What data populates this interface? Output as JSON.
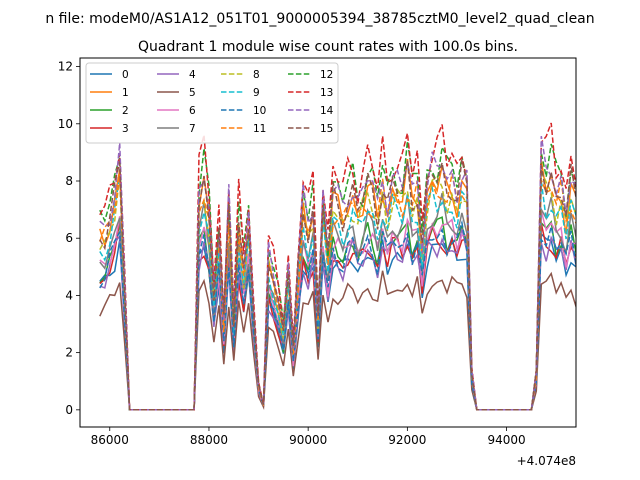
{
  "chart_data": {
    "type": "line",
    "suptitle": "n file: modeM0/AS1A12_051T01_9000005394_38785cztM0_level2_quad_clean",
    "title": "Quadrant 1 module wise count rates with 100.0s bins.",
    "xlabel": "",
    "ylabel": "",
    "x_offset_label": "+4.074e8",
    "xlim": [
      85400,
      95400
    ],
    "ylim": [
      -0.6,
      12.3
    ],
    "x_ticks": [
      86000,
      88000,
      90000,
      92000,
      94000
    ],
    "x_tick_labels": [
      "86000",
      "88000",
      "90000",
      "92000",
      "94000"
    ],
    "y_ticks": [
      0,
      2,
      4,
      6,
      8,
      10,
      12
    ],
    "y_tick_labels": [
      "0",
      "2",
      "4",
      "6",
      "8",
      "10",
      "12"
    ],
    "grid": false,
    "legend_position": "top-left",
    "legend_columns": 4,
    "x_start": 85800,
    "x_step": 100,
    "profile": [
      0.72,
      0.73,
      0.8,
      0.88,
      1.0,
      0.5,
      0,
      0,
      0,
      0,
      0,
      0,
      0,
      0,
      0,
      0,
      0,
      0,
      0,
      0,
      0.86,
      0.95,
      0.8,
      0.48,
      0.74,
      0.36,
      0.83,
      0.36,
      0.78,
      0.58,
      0.78,
      0.4,
      0.1,
      0.02,
      0.62,
      0.55,
      0.45,
      0.33,
      0.58,
      0.25,
      0.57,
      0.83,
      0.74,
      0.84,
      0.38,
      0.85,
      0.64,
      0.87,
      0.84,
      0.8,
      0.87,
      0.9,
      0.82,
      0.86,
      0.92,
      0.88,
      0.8,
      0.95,
      0.84,
      0.92,
      0.9,
      0.88,
      0.98,
      0.86,
      0.92,
      0.68,
      0.9,
      0.96,
      0.94,
      0.98,
      0.9,
      0.94,
      0.88,
      0.96,
      0.9,
      0.15,
      0,
      0,
      0,
      0,
      0,
      0,
      0,
      0,
      0,
      0,
      0,
      0,
      0.15,
      1.0,
      0.93,
      0.98,
      0.88,
      0.92,
      0.8,
      0.93,
      0.84,
      0.88,
      0.82,
      0.9,
      0.85
    ],
    "series": [
      {
        "name": "0",
        "color": "#1f77b4",
        "dash": false,
        "level": 6.0,
        "phase": 0
      },
      {
        "name": "1",
        "color": "#ff7f0e",
        "dash": false,
        "level": 8.3,
        "phase": 1
      },
      {
        "name": "2",
        "color": "#2ca02c",
        "dash": false,
        "level": 6.6,
        "phase": 2
      },
      {
        "name": "3",
        "color": "#d62728",
        "dash": false,
        "level": 6.2,
        "phase": 3
      },
      {
        "name": "4",
        "color": "#9467bd",
        "dash": false,
        "level": 6.1,
        "phase": 4
      },
      {
        "name": "5",
        "color": "#8c564b",
        "dash": false,
        "level": 4.7,
        "phase": 5
      },
      {
        "name": "6",
        "color": "#e377c2",
        "dash": false,
        "level": 6.7,
        "phase": 6
      },
      {
        "name": "7",
        "color": "#7f7f7f",
        "dash": false,
        "level": 7.1,
        "phase": 7
      },
      {
        "name": "8",
        "color": "#bcbd22",
        "dash": true,
        "level": 8.0,
        "phase": 8
      },
      {
        "name": "9",
        "color": "#17becf",
        "dash": true,
        "level": 7.6,
        "phase": 9
      },
      {
        "name": "10",
        "color": "#1f77b4",
        "dash": true,
        "level": 6.4,
        "phase": 10
      },
      {
        "name": "11",
        "color": "#ff7f0e",
        "dash": true,
        "level": 8.1,
        "phase": 11
      },
      {
        "name": "12",
        "color": "#2ca02c",
        "dash": true,
        "level": 9.1,
        "phase": 12
      },
      {
        "name": "13",
        "color": "#d62728",
        "dash": true,
        "level": 9.6,
        "phase": 13
      },
      {
        "name": "14",
        "color": "#9467bd",
        "dash": true,
        "level": 8.8,
        "phase": 14
      },
      {
        "name": "15",
        "color": "#8c564b",
        "dash": true,
        "level": 8.5,
        "phase": 15
      }
    ]
  }
}
